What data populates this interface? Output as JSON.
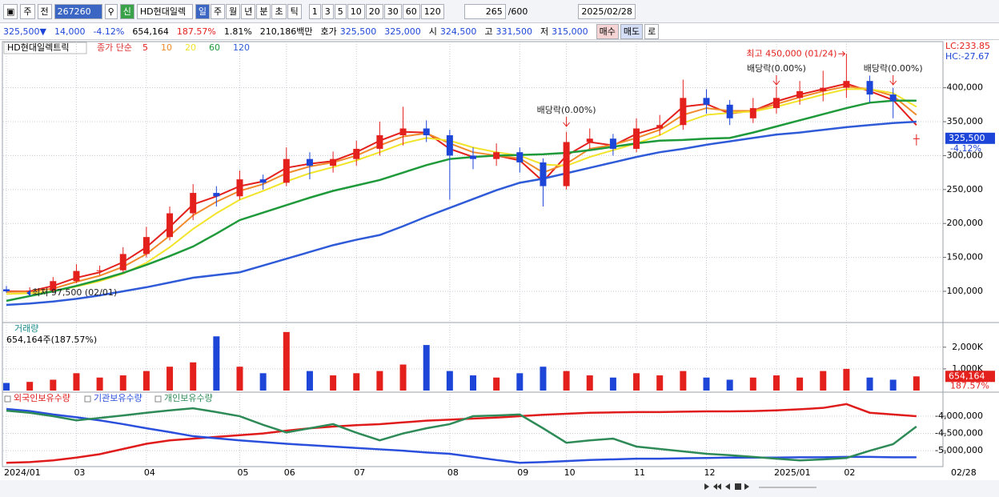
{
  "toolbar": {
    "market": "주",
    "prev": "전",
    "code": "267260",
    "name": "HD현대일렉",
    "credit": "신",
    "periods": [
      "일",
      "주",
      "월",
      "년",
      "분",
      "초",
      "틱"
    ],
    "intervals": [
      "1",
      "3",
      "5",
      "10",
      "20",
      "30",
      "60",
      "120"
    ],
    "count": "265",
    "max": "/600",
    "date": "2025/02/28"
  },
  "quote_bar": {
    "price": "325,500▼",
    "change": "14,000",
    "rate": "-4.12%",
    "volume": "654,164",
    "volume_rate": "187.57%",
    "turnover": "1.81%",
    "amount": "210,186백만",
    "ask_label": "호가",
    "ask": "325,500",
    "bid": "325,000",
    "open_label": "시",
    "open": "324,500",
    "high_label": "고",
    "high": "331,500",
    "low_label": "저",
    "low": "315,000",
    "buy": "매수",
    "sell": "매도",
    "extra": "로"
  },
  "chart_data": [
    {
      "type": "candlestick",
      "title": "HD현대일렉트릭",
      "indicator": "종가 단순",
      "lc": "LC:233.85",
      "hc": "HC:-27.67",
      "categories": [
        "2024/01",
        null,
        null,
        "03",
        null,
        null,
        "04",
        null,
        null,
        null,
        "05",
        null,
        "06",
        null,
        null,
        "07",
        null,
        null,
        null,
        "08",
        null,
        null,
        "09",
        null,
        "10",
        null,
        null,
        "11",
        null,
        null,
        "12",
        null,
        null,
        "2025/01",
        null,
        null,
        "02",
        null,
        null,
        null
      ],
      "current_date": "02/28",
      "open": [
        103000,
        100000,
        101000,
        115000,
        130000,
        131000,
        155000,
        180000,
        215000,
        245000,
        240000,
        265000,
        260000,
        295000,
        285000,
        295000,
        310000,
        330000,
        340000,
        330000,
        300000,
        295000,
        305000,
        290000,
        255000,
        320000,
        325000,
        310000,
        340000,
        345000,
        385000,
        375000,
        355000,
        370000,
        385000,
        395000,
        400000,
        410000,
        390000,
        324500
      ],
      "high": [
        108000,
        106000,
        121000,
        140000,
        138000,
        165000,
        195000,
        225000,
        258000,
        255000,
        278000,
        272000,
        312000,
        305000,
        306000,
        322000,
        350000,
        372000,
        352000,
        338000,
        312000,
        318000,
        312000,
        296000,
        335000,
        340000,
        332000,
        355000,
        360000,
        412000,
        398000,
        382000,
        385000,
        402000,
        410000,
        425000,
        450000,
        418000,
        400000,
        331500
      ],
      "low": [
        98000,
        97500,
        99000,
        112000,
        124000,
        128000,
        150000,
        175000,
        205000,
        225000,
        235000,
        250000,
        255000,
        265000,
        275000,
        285000,
        300000,
        315000,
        320000,
        235000,
        280000,
        285000,
        275000,
        225000,
        250000,
        310000,
        300000,
        305000,
        330000,
        338000,
        362000,
        345000,
        348000,
        362000,
        375000,
        380000,
        385000,
        378000,
        355000,
        315000
      ],
      "close": [
        100000,
        101000,
        115000,
        130000,
        131000,
        155000,
        180000,
        215000,
        245000,
        240000,
        265000,
        260000,
        295000,
        285000,
        295000,
        310000,
        330000,
        340000,
        330000,
        300000,
        295000,
        305000,
        290000,
        255000,
        320000,
        325000,
        310000,
        340000,
        345000,
        385000,
        375000,
        355000,
        370000,
        385000,
        395000,
        400000,
        410000,
        390000,
        380000,
        325500
      ],
      "up_color": "#e3201c",
      "down_color": "#1d46d8",
      "series": [
        {
          "name": "5",
          "color": "#e3201c",
          "values": [
            100000,
            100000,
            108000,
            120000,
            128000,
            143000,
            165000,
            195000,
            228000,
            240000,
            255000,
            262000,
            282000,
            288000,
            292000,
            305000,
            322000,
            335000,
            334000,
            310000,
            298000,
            300000,
            293000,
            262000,
            300000,
            320000,
            315000,
            332000,
            342000,
            372000,
            376000,
            362000,
            366000,
            380000,
            390000,
            398000,
            406000,
            395000,
            382000,
            345000
          ]
        },
        {
          "name": "10",
          "color": "#f08a2a",
          "values": [
            99000,
            99500,
            104000,
            114000,
            123000,
            136000,
            155000,
            182000,
            212000,
            232000,
            248000,
            258000,
            274000,
            284000,
            290000,
            300000,
            315000,
            328000,
            333000,
            318000,
            305000,
            300000,
            296000,
            275000,
            288000,
            310000,
            316000,
            326000,
            338000,
            360000,
            370000,
            366000,
            366000,
            376000,
            386000,
            395000,
            402000,
            398000,
            388000,
            360000
          ]
        },
        {
          "name": "20",
          "color": "#f2e42a",
          "values": [
            96000,
            97000,
            100000,
            107000,
            115000,
            126000,
            142000,
            165000,
            192000,
            215000,
            235000,
            248000,
            262000,
            274000,
            283000,
            293000,
            305000,
            318000,
            326000,
            322000,
            312000,
            305000,
            300000,
            287000,
            285000,
            298000,
            308000,
            318000,
            330000,
            348000,
            360000,
            363000,
            365000,
            372000,
            381000,
            390000,
            398000,
            398000,
            392000,
            372000
          ]
        },
        {
          "name": "60",
          "color": "#1f9a3a",
          "values": [
            86000,
            93000,
            100000,
            108000,
            117000,
            127000,
            139000,
            152000,
            166000,
            185000,
            205000,
            216000,
            227000,
            238000,
            248000,
            256000,
            264000,
            275000,
            286000,
            295000,
            298000,
            300000,
            301000,
            302000,
            304000,
            308000,
            313000,
            318000,
            322000,
            323000,
            325000,
            326000,
            334000,
            343000,
            352000,
            361000,
            370000,
            378000,
            381000,
            381000
          ]
        },
        {
          "name": "120",
          "color": "#2f5bd8",
          "values": [
            80000,
            82000,
            85000,
            89000,
            94000,
            100000,
            106000,
            113000,
            120000,
            124000,
            128000,
            138000,
            148000,
            158000,
            168000,
            176000,
            183000,
            196000,
            210000,
            223000,
            236000,
            249000,
            260000,
            266000,
            274000,
            282000,
            290000,
            298000,
            305000,
            310000,
            316000,
            321000,
            326000,
            331000,
            334000,
            338000,
            342000,
            345000,
            348000,
            350000
          ]
        }
      ],
      "ylim": [
        54000,
        468000
      ],
      "yticks": [
        {
          "value": 100000,
          "label": "100,000"
        },
        {
          "value": 150000,
          "label": "150,000"
        },
        {
          "value": 200000,
          "label": "200,000"
        },
        {
          "value": 250000,
          "label": "250,000"
        },
        {
          "value": 300000,
          "label": "300,000"
        },
        {
          "value": 350000,
          "label": "350,000"
        },
        {
          "value": 400000,
          "label": "400,000"
        }
      ],
      "grid": true,
      "high_label": {
        "value": 450000,
        "label": "최고 450,000 (01/24)"
      },
      "low_label": {
        "value": 97500,
        "label": "최저 97,500 (02/01)"
      },
      "dividend_labels": [
        "배당락(0.00%)",
        "배당락(0.00%)",
        "배당락(0.00%)"
      ],
      "price_tag": {
        "value": 325500,
        "label": "325,500",
        "change": "-4.12%"
      }
    },
    {
      "type": "bar",
      "title": "거래량",
      "subtitle": "654,164주(187.57%)",
      "values": [
        350000,
        400000,
        500000,
        800000,
        600000,
        700000,
        900000,
        1100000,
        1300000,
        2500000,
        1100000,
        800000,
        2700000,
        900000,
        700000,
        800000,
        900000,
        1200000,
        2100000,
        900000,
        700000,
        600000,
        800000,
        1100000,
        900000,
        700000,
        600000,
        800000,
        700000,
        900000,
        600000,
        500000,
        600000,
        700000,
        600000,
        900000,
        1000000,
        600000,
        500000,
        654164
      ],
      "ylim": [
        0,
        3100000
      ],
      "yticks": [
        {
          "value": 1000000,
          "label": "1,000K"
        },
        {
          "value": 2000000,
          "label": "2,000K"
        }
      ],
      "volume_tag": {
        "value": 654164,
        "label": "654,164",
        "rate": "187.57%"
      }
    },
    {
      "type": "line",
      "series": [
        {
          "name": "외국인보유수량",
          "color": "#e01b1b",
          "values": [
            -5350000,
            -5330000,
            -5280000,
            -5200000,
            -5100000,
            -4950000,
            -4800000,
            -4700000,
            -4650000,
            -4600000,
            -4550000,
            -4500000,
            -4420000,
            -4350000,
            -4300000,
            -4260000,
            -4230000,
            -4180000,
            -4130000,
            -4100000,
            -4070000,
            -4040000,
            -4000000,
            -3960000,
            -3930000,
            -3900000,
            -3890000,
            -3880000,
            -3880000,
            -3870000,
            -3860000,
            -3860000,
            -3850000,
            -3830000,
            -3800000,
            -3760000,
            -3650000,
            -3900000,
            -3950000,
            -4000000
          ]
        },
        {
          "name": "기관보유수량",
          "color": "#2a4fdc",
          "values": [
            -3790000,
            -3850000,
            -3950000,
            -4030000,
            -4120000,
            -4230000,
            -4350000,
            -4460000,
            -4580000,
            -4640000,
            -4700000,
            -4750000,
            -4800000,
            -4840000,
            -4880000,
            -4920000,
            -4960000,
            -5000000,
            -5050000,
            -5090000,
            -5180000,
            -5270000,
            -5350000,
            -5330000,
            -5300000,
            -5270000,
            -5250000,
            -5230000,
            -5230000,
            -5220000,
            -5210000,
            -5200000,
            -5200000,
            -5200000,
            -5190000,
            -5190000,
            -5180000,
            -5180000,
            -5190000,
            -5190000
          ]
        },
        {
          "name": "개인보유수량",
          "color": "#2e8b57",
          "values": [
            -3840000,
            -3900000,
            -4000000,
            -4120000,
            -4050000,
            -3980000,
            -3900000,
            -3830000,
            -3770000,
            -3880000,
            -4000000,
            -4250000,
            -4470000,
            -4350000,
            -4230000,
            -4480000,
            -4700000,
            -4500000,
            -4350000,
            -4230000,
            -4000000,
            -3980000,
            -3950000,
            -4350000,
            -4770000,
            -4700000,
            -4650000,
            -4880000,
            -4950000,
            -5020000,
            -5090000,
            -5130000,
            -5180000,
            -5230000,
            -5280000,
            -5250000,
            -5210000,
            -5000000,
            -4810000,
            -4300000
          ]
        }
      ],
      "ylim": [
        -5460000,
        -3350000
      ],
      "yticks": [
        {
          "value": -4000000,
          "label": "-4,000,000"
        },
        {
          "value": -4500000,
          "label": "-4,500,000"
        },
        {
          "value": -5000000,
          "label": "-5,000,000"
        }
      ]
    }
  ]
}
